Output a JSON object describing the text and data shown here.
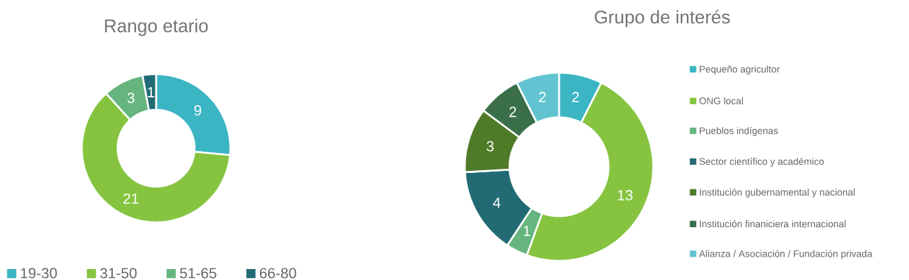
{
  "chart_data": [
    {
      "type": "donut",
      "title": "Rango etario",
      "categories": [
        "19-30",
        "31-50",
        "51-65",
        "66-80"
      ],
      "values": [
        9,
        21,
        3,
        1
      ],
      "colors": [
        "#3bb5c4",
        "#86c440",
        "#66b57f",
        "#236b74"
      ],
      "data_labels": true,
      "legend": "bottom"
    },
    {
      "type": "donut",
      "title": "Grupo de interés",
      "categories": [
        "Pequeño agricultor",
        "ONG local",
        "Pueblos indígenas",
        "Sector científico y académico",
        "Institución gubernamental y nacional",
        "Institución finaniciera internacional",
        "Alianza / Asociación / Fundación privada"
      ],
      "values": [
        2,
        13,
        1,
        4,
        3,
        2,
        2
      ],
      "colors": [
        "#3bb5c4",
        "#86c440",
        "#66b57f",
        "#236b74",
        "#4f7a28",
        "#3a6f4a",
        "#62c4d0"
      ],
      "data_labels": true,
      "legend": "right"
    }
  ]
}
